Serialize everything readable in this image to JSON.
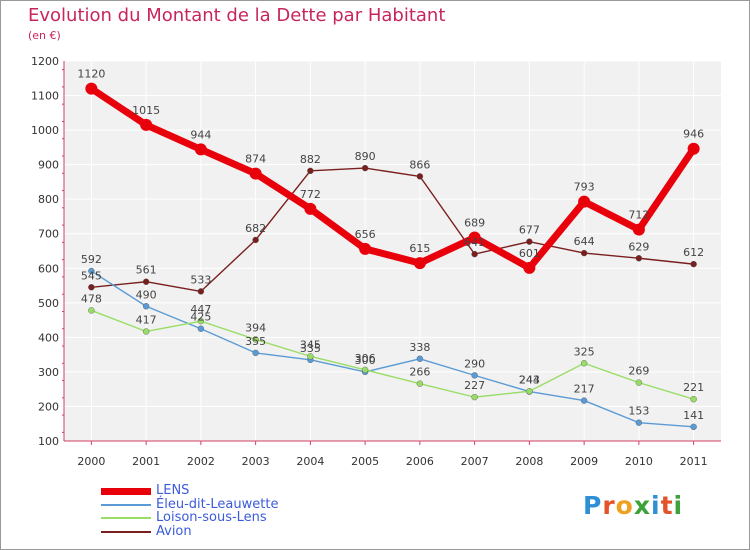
{
  "title": "Evolution du Montant de la Dette par Habitant",
  "subtitle": "(en €)",
  "logo": {
    "text": "Proxiti",
    "letter_colors": [
      "#2e8fd6",
      "#e2542b",
      "#f0a020",
      "#3aa33a",
      "#2e8fd6",
      "#e2542b",
      "#3aa33a"
    ]
  },
  "chart_data": {
    "type": "line",
    "title": "Evolution du Montant de la Dette par Habitant",
    "ylabel": "(en €)",
    "xlabel": "",
    "x": [
      "2000",
      "2001",
      "2002",
      "2003",
      "2004",
      "2005",
      "2006",
      "2007",
      "2008",
      "2009",
      "2010",
      "2011"
    ],
    "ylim": [
      100,
      1200
    ],
    "yticks": [
      "1200",
      "1100",
      "1000",
      "900",
      "800",
      "700",
      "600",
      "500",
      "400",
      "300",
      "200",
      "100"
    ],
    "grid": true,
    "legend_position": "bottom-left",
    "series": [
      {
        "name": "LENS",
        "color": "#e8000b",
        "values": [
          1120,
          1015,
          944,
          874,
          772,
          656,
          615,
          689,
          601,
          793,
          712,
          946
        ],
        "labels": [
          "1120",
          "1015",
          "944",
          "874",
          "772",
          "656",
          "615",
          "689",
          "601",
          "793",
          "712",
          "946"
        ]
      },
      {
        "name": "Éleu-dit-Leauwette",
        "color": "#5b9bd5",
        "values": [
          592,
          490,
          425,
          355,
          335,
          300,
          338,
          290,
          243,
          217,
          153,
          141
        ],
        "labels": [
          "592",
          "490",
          "425",
          "355",
          "335",
          "300",
          "338",
          "290",
          "243",
          "217",
          "153",
          "141"
        ]
      },
      {
        "name": "Loison-sous-Lens",
        "color": "#99dd66",
        "values": [
          478,
          417,
          447,
          394,
          345,
          306,
          266,
          227,
          244,
          325,
          269,
          221
        ],
        "labels": [
          "478",
          "417",
          "447",
          "394",
          "345",
          "306",
          "266",
          "227",
          "244",
          "325",
          "269",
          "221"
        ]
      },
      {
        "name": "Avion",
        "color": "#7a1f1f",
        "values": [
          545,
          561,
          533,
          682,
          882,
          890,
          866,
          641,
          677,
          644,
          629,
          612
        ],
        "labels": [
          "545",
          "561",
          "533",
          "682",
          "882",
          "890",
          "866",
          "641",
          "677",
          "644",
          "629",
          "612"
        ]
      }
    ]
  }
}
